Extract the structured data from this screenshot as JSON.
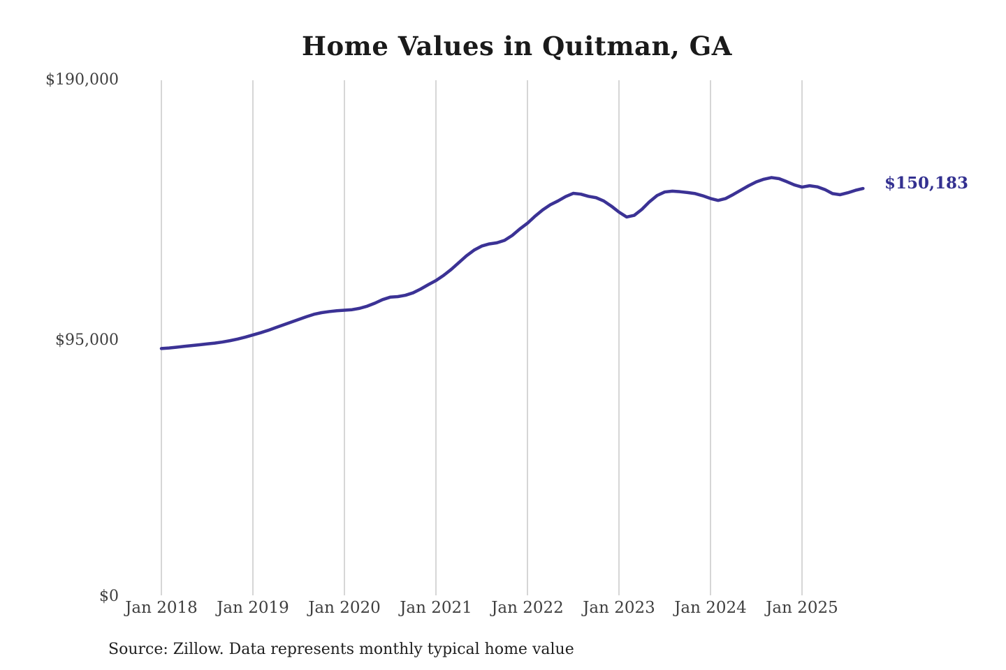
{
  "title": "Home Values in Quitman, GA",
  "source_note": "Source: Zillow. Data represents monthly typical home value",
  "end_label": "$150,183",
  "colors": {
    "line": "#3b3295",
    "end_label": "#333090",
    "gridline": "#c9c9c9",
    "axis_text": "#3f3f3f",
    "title_text": "#1a1a1a",
    "source_text": "#1f1f1f",
    "background": "#ffffff"
  },
  "chart_data": {
    "type": "line",
    "title": "Home Values in Quitman, GA",
    "xlabel": "",
    "ylabel": "",
    "x_tick_labels": [
      "Jan 2018",
      "Jan 2019",
      "Jan 2020",
      "Jan 2021",
      "Jan 2022",
      "Jan 2023",
      "Jan 2024",
      "Jan 2025"
    ],
    "y_tick_labels": [
      "$190,000",
      "$95,000",
      "$0"
    ],
    "y_ticks": [
      190000,
      95000,
      0
    ],
    "ylim": [
      0,
      190000
    ],
    "grid": "vertical-only",
    "legend": "none",
    "x_start_month": "2018-01",
    "x_end_month": "2025-09",
    "last_value": 150183,
    "last_value_label": "$150,183",
    "series": [
      {
        "name": "Monthly typical home value",
        "monthly_values": [
          91300,
          91500,
          91800,
          92100,
          92400,
          92700,
          93000,
          93300,
          93700,
          94200,
          94800,
          95500,
          96300,
          97100,
          98000,
          99000,
          100000,
          101000,
          102000,
          103000,
          103900,
          104500,
          104900,
          105200,
          105400,
          105600,
          106100,
          106900,
          108000,
          109300,
          110200,
          110400,
          110900,
          111800,
          113200,
          114800,
          116300,
          118200,
          120400,
          122900,
          125400,
          127500,
          129000,
          129800,
          130200,
          131100,
          132900,
          135300,
          137400,
          140000,
          142300,
          144200,
          145600,
          147200,
          148400,
          148100,
          147300,
          146800,
          145600,
          143700,
          141500,
          139700,
          140300,
          142500,
          145300,
          147600,
          148900,
          149200,
          149000,
          148700,
          148300,
          147500,
          146500,
          145800,
          146500,
          148000,
          149600,
          151200,
          152600,
          153600,
          154200,
          153800,
          152700,
          151500,
          150700,
          151200,
          150800,
          149800,
          148300,
          147900,
          148600,
          149500,
          150183
        ]
      }
    ]
  }
}
